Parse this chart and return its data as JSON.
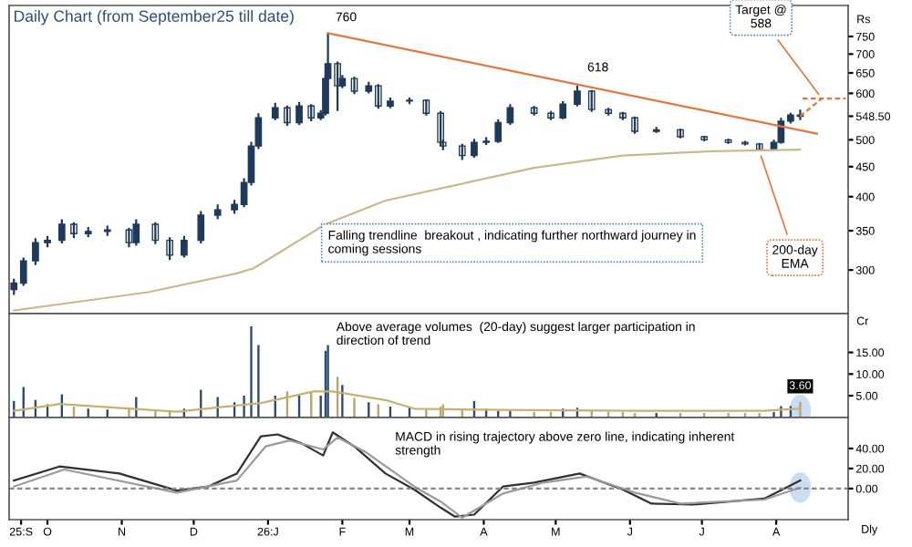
{
  "chart_data": [
    {
      "type": "candlestick",
      "title": "Daily Chart (from September25 till date)",
      "ylabel": "Rs",
      "log": "y",
      "ylim": [
        253,
        847
      ],
      "xlim": [
        "2025-09-15",
        "2026-08-31"
      ],
      "tick_labels": "y",
      "grid": false,
      "yticks": [
        300,
        350,
        400,
        450,
        500,
        {
          "value": 548.5,
          "label": "548.50"
        },
        600,
        650,
        700,
        750
      ],
      "series": [
        {
          "type": "candlestick",
          "color": "#1f3a5a",
          "x": [
            "2025-09-17",
            "2025-09-21",
            "2025-09-26",
            "2025-10-01",
            "2025-10-07",
            "2025-10-12",
            "2025-10-18",
            "2025-10-26",
            "2025-11-04",
            "2025-11-07",
            "2025-11-15",
            "2025-11-21",
            "2025-11-27",
            "2025-12-04",
            "2025-12-11",
            "2025-12-18",
            "2025-12-22",
            "2025-12-25",
            "2025-12-28",
            "2026-01-04",
            "2026-01-09",
            "2026-01-14",
            "2026-01-19",
            "2026-01-23",
            "2026-01-25",
            "2026-01-26",
            "2026-01-30",
            "2026-02-01",
            "2026-02-06",
            "2026-02-12",
            "2026-02-16",
            "2026-02-21",
            "2026-03-01",
            "2026-03-08",
            "2026-03-14",
            "2026-03-15",
            "2026-03-23",
            "2026-03-28",
            "2026-04-02",
            "2026-04-07",
            "2026-04-12",
            "2026-04-22",
            "2026-04-29",
            "2026-05-04",
            "2026-05-10",
            "2026-05-16",
            "2026-05-23",
            "2026-05-29",
            "2026-06-03",
            "2026-06-12",
            "2026-06-22",
            "2026-07-02",
            "2026-07-12",
            "2026-07-19",
            "2026-07-25",
            "2026-07-31",
            "2026-08-03",
            "2026-08-07",
            "2026-08-11"
          ],
          "ohlc": [
            [
              278,
              290,
              272,
              285
            ],
            [
              285,
              315,
              282,
              311
            ],
            [
              311,
              340,
              306,
              334
            ],
            [
              334,
              343,
              328,
              337
            ],
            [
              337,
              366,
              333,
              359
            ],
            [
              359,
              362,
              340,
              346
            ],
            [
              346,
              355,
              341,
              349
            ],
            [
              349,
              357,
              343,
              351
            ],
            [
              351,
              354,
              328,
              334
            ],
            [
              334,
              366,
              330,
              359
            ],
            [
              359,
              362,
              332,
              337
            ],
            [
              337,
              341,
              312,
              318
            ],
            [
              318,
              343,
              315,
              337
            ],
            [
              337,
              378,
              333,
              372
            ],
            [
              372,
              388,
              366,
              380
            ],
            [
              380,
              395,
              374,
              388
            ],
            [
              388,
              430,
              384,
              423
            ],
            [
              423,
              496,
              418,
              488
            ],
            [
              488,
              555,
              482,
              545
            ],
            [
              545,
              578,
              540,
              567
            ],
            [
              567,
              572,
              528,
              535
            ],
            [
              535,
              580,
              530,
              571
            ],
            [
              571,
              575,
              538,
              545
            ],
            [
              545,
              562,
              540,
              555
            ],
            [
              555,
              645,
              550,
              636
            ],
            [
              636,
              760,
              630,
              674
            ],
            [
              674,
              680,
              560,
              618
            ],
            [
              618,
              645,
              612,
              636
            ],
            [
              636,
              640,
              598,
              605
            ],
            [
              605,
              628,
              600,
              618
            ],
            [
              618,
              622,
              565,
              571
            ],
            [
              571,
              590,
              566,
              582
            ],
            [
              582,
              590,
              575,
              584
            ],
            [
              584,
              586,
              550,
              555
            ],
            [
              555,
              560,
              488,
              495
            ],
            [
              495,
              500,
              480,
              488
            ],
            [
              488,
              492,
              462,
              470
            ],
            [
              470,
              502,
              466,
              495
            ],
            [
              495,
              505,
              490,
              497
            ],
            [
              497,
              542,
              494,
              535
            ],
            [
              535,
              575,
              530,
              567
            ],
            [
              567,
              571,
              550,
              555
            ],
            [
              555,
              560,
              540,
              545
            ],
            [
              545,
              582,
              542,
              575
            ],
            [
              575,
              618,
              570,
              605
            ],
            [
              605,
              608,
              558,
              563
            ],
            [
              563,
              567,
              550,
              555
            ],
            [
              555,
              558,
              540,
              545
            ],
            [
              545,
              548,
              512,
              517
            ],
            [
              517,
              526,
              514,
              520
            ],
            [
              520,
              522,
              503,
              506
            ],
            [
              506,
              508,
              497,
              500
            ],
            [
              500,
              502,
              492,
              495
            ],
            [
              495,
              498,
              489,
              492
            ],
            [
              492,
              494,
              478,
              481
            ],
            [
              481,
              500,
              479,
              495
            ],
            [
              495,
              545,
              492,
              538
            ],
            [
              538,
              556,
              533,
              551
            ],
            [
              551,
              563,
              540,
              548.5
            ]
          ]
        },
        {
          "type": "line",
          "color": "#e8743b",
          "x": [
            "2026-01-26",
            "2026-08-18"
          ],
          "values": [
            760,
            512
          ]
        },
        {
          "type": "line",
          "color": "#e8743b",
          "line_style": "dashed",
          "x": [
            "2026-08-11",
            "2026-08-20"
          ],
          "values": [
            548.5,
            588
          ]
        },
        {
          "type": "line",
          "color": "#e8743b",
          "line_style": "dashed",
          "x": [
            "2026-08-12",
            "2026-08-30"
          ],
          "values": [
            588,
            588
          ]
        },
        {
          "type": "line",
          "color": "#c9b98c",
          "x": [
            "2025-09-17",
            "2025-11-12",
            "2025-12-19",
            "2025-12-26",
            "2026-01-25",
            "2026-02-19",
            "2026-03-15",
            "2026-04-22",
            "2026-05-29",
            "2026-07-05",
            "2026-08-11"
          ],
          "values": [
            256,
            275,
            296,
            302,
            359,
            394,
            414,
            448,
            470,
            478,
            481
          ]
        }
      ],
      "annotations": [
        {
          "text": "760",
          "x": "2026-01-26",
          "y": 760
        },
        {
          "text": "618",
          "x": "2026-05-10",
          "y": 618
        },
        {
          "text": "Target @\n588",
          "x": "2026-08-20",
          "y": 588
        },
        {
          "text": "200-day\nEMA",
          "x": "2026-07-25",
          "y": 478
        },
        "Falling trendline  breakout , indicating further northward journey in\ncoming sessions"
      ]
    },
    {
      "type": "bar",
      "ylabel": "Cr",
      "ylim": [
        0,
        24
      ],
      "xlim": [
        "2025-09-15",
        "2026-08-31"
      ],
      "tick_labels": "y",
      "grid": false,
      "yticks": [
        {
          "value": 5,
          "label": "5.00"
        },
        {
          "value": 10,
          "label": "10.00"
        },
        {
          "value": 15,
          "label": "15.00"
        }
      ],
      "series": [
        {
          "type": "bar",
          "x": [
            "2025-09-17",
            "2025-09-21",
            "2025-09-26",
            "2025-10-01",
            "2025-10-07",
            "2025-10-12",
            "2025-10-18",
            "2025-10-26",
            "2025-11-04",
            "2025-11-07",
            "2025-11-15",
            "2025-11-21",
            "2025-11-27",
            "2025-12-04",
            "2025-12-11",
            "2025-12-18",
            "2025-12-22",
            "2025-12-25",
            "2025-12-28",
            "2026-01-04",
            "2026-01-09",
            "2026-01-14",
            "2026-01-19",
            "2026-01-23",
            "2026-01-25",
            "2026-01-26",
            "2026-01-30",
            "2026-02-01",
            "2026-02-06",
            "2026-02-12",
            "2026-02-16",
            "2026-02-21",
            "2026-03-01",
            "2026-03-08",
            "2026-03-14",
            "2026-03-15",
            "2026-03-23",
            "2026-03-28",
            "2026-04-02",
            "2026-04-07",
            "2026-04-12",
            "2026-04-22",
            "2026-04-29",
            "2026-05-04",
            "2026-05-10",
            "2026-05-16",
            "2026-05-23",
            "2026-05-29",
            "2026-06-03",
            "2026-06-12",
            "2026-06-22",
            "2026-07-02",
            "2026-07-12",
            "2026-07-19",
            "2026-07-25",
            "2026-07-31",
            "2026-08-03",
            "2026-08-07",
            "2026-08-11"
          ],
          "values": [
            3.8,
            7,
            4,
            3,
            5.3,
            2.5,
            2,
            1.8,
            2,
            4.7,
            1.5,
            1.5,
            2,
            6.4,
            4.7,
            3.5,
            5,
            21,
            16.7,
            5,
            6,
            5,
            6,
            5,
            15.4,
            16.7,
            9.4,
            7.5,
            4.5,
            3.5,
            3,
            2.5,
            2.5,
            2,
            2.5,
            3,
            2,
            3.8,
            2,
            1.5,
            1.5,
            1.3,
            1.3,
            2,
            2.2,
            1.5,
            1.3,
            1.2,
            1,
            1,
            1,
            1,
            1,
            1,
            1,
            1.2,
            2.6,
            2.6,
            3.6
          ],
          "colors": [
            "#2b4a6f",
            "#2b4a6f",
            "#2b4a6f",
            "#2b4a6f",
            "#2b4a6f",
            "#b5a56f",
            "#2b4a6f",
            "#2b4a6f",
            "#b5a56f",
            "#2b4a6f",
            "#b5a56f",
            "#b5a56f",
            "#2b4a6f",
            "#2b4a6f",
            "#2b4a6f",
            "#2b4a6f",
            "#2b4a6f",
            "#2b4a6f",
            "#2b4a6f",
            "#2b4a6f",
            "#b5a56f",
            "#2b4a6f",
            "#b5a56f",
            "#2b4a6f",
            "#2b4a6f",
            "#2b4a6f",
            "#b5a56f",
            "#2b4a6f",
            "#b5a56f",
            "#2b4a6f",
            "#b5a56f",
            "#2b4a6f",
            "#2b4a6f",
            "#b5a56f",
            "#b5a56f",
            "#b5a56f",
            "#b5a56f",
            "#2b4a6f",
            "#2b4a6f",
            "#2b4a6f",
            "#2b4a6f",
            "#b5a56f",
            "#b5a56f",
            "#2b4a6f",
            "#2b4a6f",
            "#b5a56f",
            "#b5a56f",
            "#b5a56f",
            "#b5a56f",
            "#2b4a6f",
            "#b5a56f",
            "#b5a56f",
            "#b5a56f",
            "#b5a56f",
            "#b5a56f",
            "#2b4a6f",
            "#2b4a6f",
            "#2b4a6f",
            "#b5a56f"
          ],
          "value_labels": [
            null,
            null,
            null,
            null,
            null,
            null,
            null,
            null,
            null,
            null,
            null,
            null,
            null,
            null,
            null,
            null,
            null,
            null,
            null,
            null,
            null,
            null,
            null,
            null,
            null,
            null,
            null,
            null,
            null,
            null,
            null,
            null,
            null,
            null,
            null,
            null,
            null,
            null,
            null,
            null,
            null,
            null,
            null,
            null,
            null,
            null,
            null,
            null,
            null,
            null,
            null,
            null,
            null,
            null,
            null,
            null,
            null,
            null,
            "3.60"
          ]
        },
        {
          "type": "line",
          "color": "#c8b070",
          "x": [
            "2025-09-17",
            "2025-10-06",
            "2025-11-24",
            "2025-12-29",
            "2026-01-20",
            "2026-01-28",
            "2026-02-19",
            "2026-03-03",
            "2026-04-09",
            "2026-06-03",
            "2026-07-27",
            "2026-08-11"
          ],
          "values": [
            1.5,
            3.1,
            1.3,
            3.3,
            6,
            6,
            4,
            2,
            1.7,
            1.5,
            1.5,
            2
          ]
        }
      ],
      "annotations": [
        "Above average volumes  (20-day) suggest larger participation in\ndirection of trend"
      ]
    },
    {
      "type": "line",
      "xlabel": "Dly",
      "ylim": [
        -31,
        71
      ],
      "xlim": [
        "2025-09-15",
        "2026-08-31"
      ],
      "grid": false,
      "yticks": [
        {
          "value": 0,
          "label": "0.00"
        },
        {
          "value": 20,
          "label": "20.00"
        },
        {
          "value": 40,
          "label": "40.00"
        }
      ],
      "xticks": [
        {
          "value": "2025-09-20",
          "label": "25:S"
        },
        {
          "value": "2025-10-01",
          "label": "O"
        },
        {
          "value": "2025-11-01",
          "label": "N"
        },
        {
          "value": "2025-12-01",
          "label": "D"
        },
        {
          "value": "2026-01-01",
          "label": "26:J"
        },
        {
          "value": "2026-02-01",
          "label": "F"
        },
        {
          "value": "2026-03-01",
          "label": "M"
        },
        {
          "value": "2026-04-01",
          "label": "A"
        },
        {
          "value": "2026-05-01",
          "label": "M"
        },
        {
          "value": "2026-06-01",
          "label": "J"
        },
        {
          "value": "2026-07-01",
          "label": "J"
        },
        {
          "value": "2026-08-01",
          "label": "A"
        }
      ],
      "series": [
        {
          "color": "#303030",
          "x": [
            "2025-09-17",
            "2025-10-06",
            "2025-10-31",
            "2025-11-24",
            "2025-12-07",
            "2025-12-19",
            "2025-12-29",
            "2026-01-05",
            "2026-01-15",
            "2026-01-24",
            "2026-01-28",
            "2026-02-06",
            "2026-02-19",
            "2026-03-03",
            "2026-03-14",
            "2026-03-20",
            "2026-03-28",
            "2026-04-09",
            "2026-04-22",
            "2026-05-11",
            "2026-05-29",
            "2026-06-10",
            "2026-06-27",
            "2026-07-27",
            "2026-08-06",
            "2026-08-11"
          ],
          "values": [
            8,
            22,
            15,
            -2,
            2,
            15,
            52,
            54,
            45,
            33,
            56,
            42,
            15,
            -1,
            -19,
            -28,
            -26,
            2,
            6,
            15,
            -1,
            -15,
            -16,
            -10,
            2,
            8
          ]
        },
        {
          "color": "#9a9a9a",
          "x": [
            "2025-09-17",
            "2025-10-08",
            "2025-11-24",
            "2025-12-19",
            "2025-12-31",
            "2026-01-10",
            "2026-01-24",
            "2026-01-30",
            "2026-02-11",
            "2026-03-03",
            "2026-03-14",
            "2026-03-23",
            "2026-04-09",
            "2026-04-26",
            "2026-05-14",
            "2026-06-03",
            "2026-06-22",
            "2026-07-27",
            "2026-08-11"
          ],
          "values": [
            2,
            19,
            -4,
            8,
            42,
            48,
            39,
            51,
            36,
            2,
            -13,
            -29,
            -5,
            6,
            12,
            -4,
            -15,
            -11,
            1
          ]
        }
      ],
      "ref_lines": [
        {
          "axis": "y",
          "value": 0,
          "color": "#8a8a8a",
          "line_style": "dashed"
        }
      ],
      "annotations": [
        "MACD in rising trajectory above zero line, indicating inherent\nstrength"
      ]
    }
  ]
}
